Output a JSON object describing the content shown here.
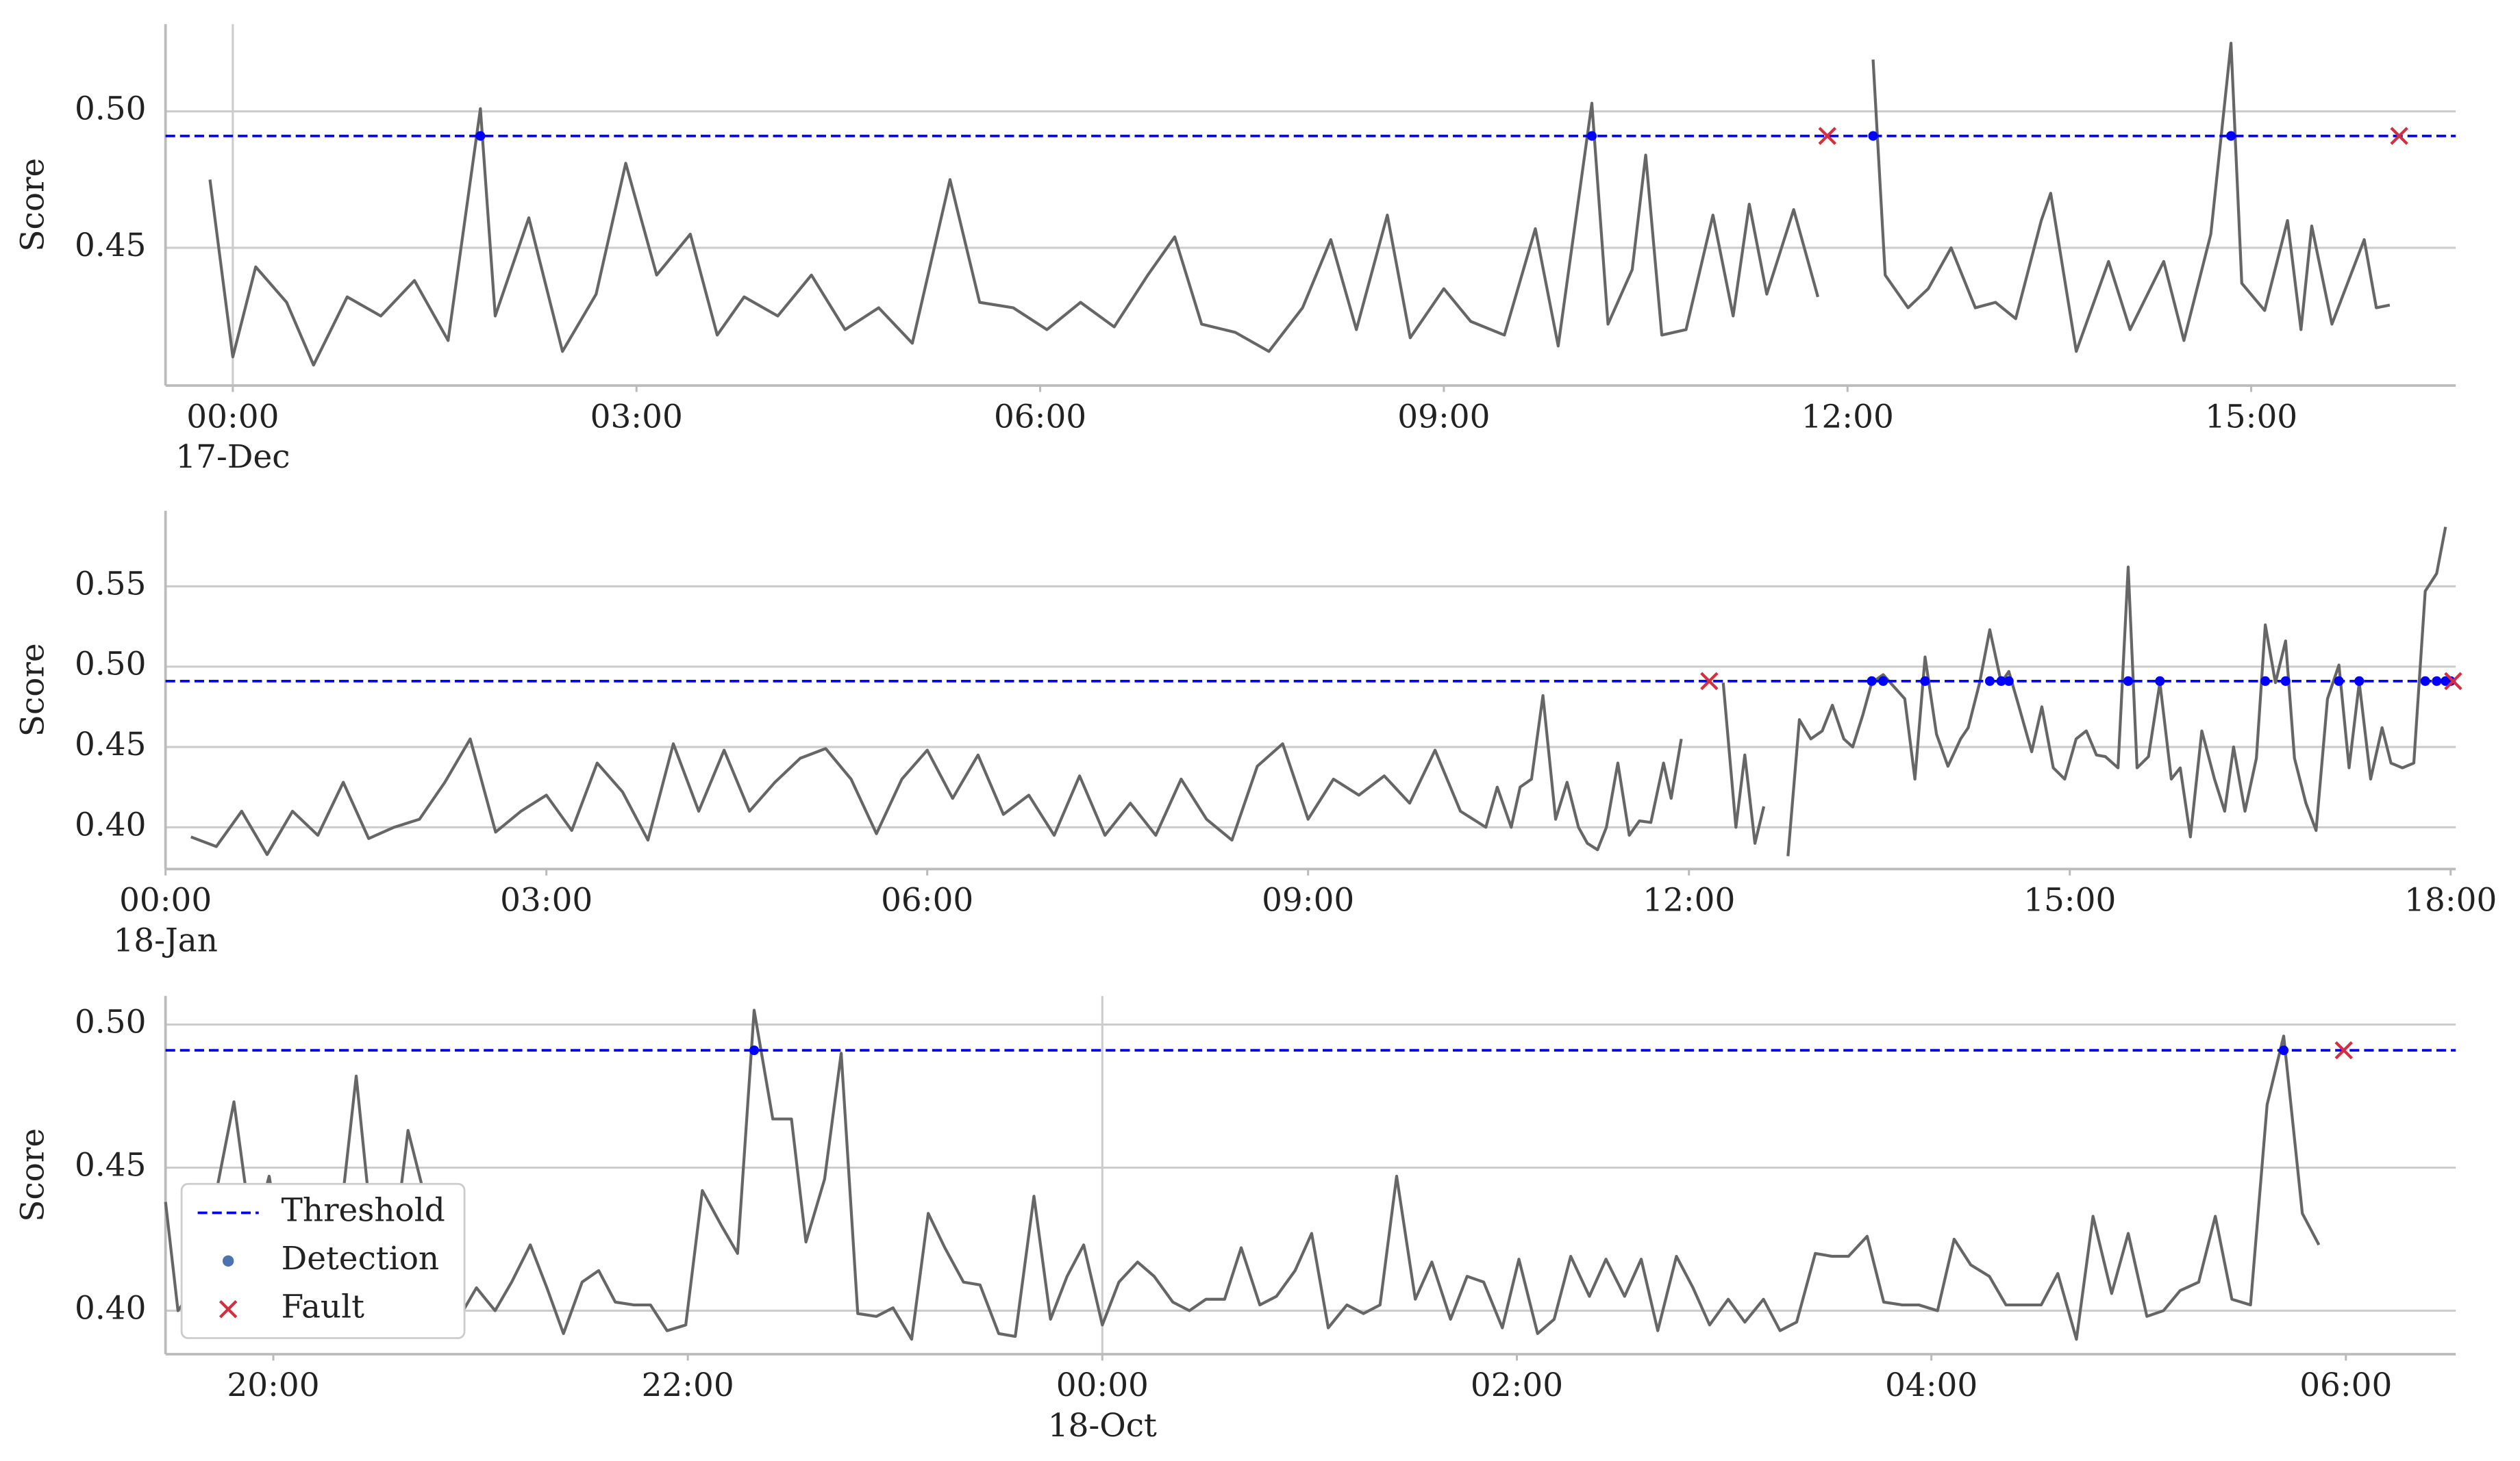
{
  "chart_data": [
    {
      "type": "line",
      "ylabel": "Score",
      "grid": true,
      "line_color": "#666666",
      "xlim": [
        -0.5,
        16.52
      ],
      "ylim": [
        0.3995,
        0.532
      ],
      "xticks": [
        {
          "value": 0,
          "label": "00:00"
        },
        {
          "value": 3,
          "label": "03:00"
        },
        {
          "value": 6,
          "label": "06:00"
        },
        {
          "value": 9,
          "label": "09:00"
        },
        {
          "value": 12,
          "label": "12:00"
        },
        {
          "value": 15,
          "label": "15:00"
        }
      ],
      "x_date_labels": [
        {
          "value": 0,
          "label": "17-Dec"
        }
      ],
      "yticks": [
        0.45,
        {
          "value": 0.5,
          "label": "0.50"
        }
      ],
      "x": [
        -0.17,
        0,
        0.17,
        0.4,
        0.6,
        0.85,
        1.1,
        1.35,
        1.6,
        1.84,
        1.95,
        2.2,
        2.45,
        2.7,
        2.92,
        3.15,
        3.4,
        3.6,
        3.8,
        4.05,
        4.3,
        4.55,
        4.8,
        5.05,
        5.33,
        5.55,
        5.8,
        6.05,
        6.3,
        6.55,
        6.8,
        7.0,
        7.2,
        7.45,
        7.7,
        7.95,
        8.16,
        8.35,
        8.58,
        8.75,
        9.0,
        9.2,
        9.45,
        9.68,
        9.85,
        10.1,
        10.22,
        10.4,
        10.5,
        10.62,
        10.8,
        11.0,
        11.15,
        11.27,
        11.4,
        11.6,
        11.78,
        12.0,
        12.19,
        12.28,
        12.45,
        12.6,
        12.77,
        12.95,
        13.1,
        13.25,
        13.44,
        13.51,
        13.7,
        13.94,
        14.1,
        14.35,
        14.5,
        14.7,
        14.85,
        14.93,
        15.1,
        15.27,
        15.37,
        15.45,
        15.6,
        15.84,
        15.93,
        16.03
      ],
      "values": [
        0.475,
        0.41,
        0.443,
        0.43,
        0.407,
        0.432,
        0.425,
        0.438,
        0.416,
        0.501,
        0.425,
        0.461,
        0.412,
        0.433,
        0.481,
        0.44,
        0.455,
        0.418,
        0.432,
        0.425,
        0.44,
        0.42,
        0.428,
        0.415,
        0.475,
        0.43,
        0.428,
        0.42,
        0.43,
        0.421,
        0.44,
        0.454,
        0.422,
        0.419,
        0.412,
        0.428,
        0.453,
        0.42,
        0.462,
        0.417,
        0.435,
        0.423,
        0.418,
        0.457,
        0.414,
        0.503,
        0.422,
        0.442,
        0.484,
        0.418,
        0.42,
        0.462,
        0.425,
        0.466,
        0.433,
        0.464,
        0.432,
        null,
        0.519,
        0.44,
        0.428,
        0.435,
        0.45,
        0.428,
        0.43,
        0.424,
        0.46,
        0.47,
        0.412,
        0.445,
        0.42,
        0.445,
        0.416,
        0.455,
        0.525,
        0.437,
        0.427,
        0.46,
        0.42,
        0.458,
        0.422,
        0.453,
        0.428,
        0.429
      ],
      "threshold": {
        "value": 0.491,
        "color": "#0000ff"
      },
      "detections": {
        "color": "#0000ff",
        "x": [
          1.84,
          10.1,
          12.19,
          14.85
        ]
      },
      "faults": {
        "color": "#d03040",
        "x": [
          11.85,
          16.1
        ]
      }
    },
    {
      "type": "line",
      "ylabel": "Score",
      "grid": true,
      "line_color": "#666666",
      "xlim": [
        0,
        18.04
      ],
      "ylim": [
        0.374,
        0.597
      ],
      "xticks": [
        {
          "value": 0,
          "label": "00:00"
        },
        {
          "value": 3,
          "label": "03:00"
        },
        {
          "value": 6,
          "label": "06:00"
        },
        {
          "value": 9,
          "label": "09:00"
        },
        {
          "value": 12,
          "label": "12:00"
        },
        {
          "value": 15,
          "label": "15:00"
        },
        {
          "value": 18,
          "label": "18:00"
        }
      ],
      "x_date_labels": [
        {
          "value": 0,
          "label": "18-Jan"
        }
      ],
      "yticks": [
        {
          "value": 0.4,
          "label": "0.40"
        },
        0.45,
        {
          "value": 0.5,
          "label": "0.50"
        },
        0.55
      ],
      "x": [
        0.2,
        0.4,
        0.6,
        0.8,
        1.0,
        1.2,
        1.4,
        1.6,
        1.8,
        2.0,
        2.2,
        2.4,
        2.6,
        2.8,
        3.0,
        3.2,
        3.4,
        3.6,
        3.8,
        4.0,
        4.2,
        4.4,
        4.6,
        4.8,
        5.0,
        5.2,
        5.4,
        5.6,
        5.8,
        6.0,
        6.2,
        6.4,
        6.6,
        6.8,
        7.0,
        7.2,
        7.4,
        7.6,
        7.8,
        8.0,
        8.2,
        8.4,
        8.6,
        8.8,
        9.0,
        9.2,
        9.4,
        9.6,
        9.8,
        10.0,
        10.2,
        10.4,
        10.49,
        10.6,
        10.67,
        10.76,
        10.85,
        10.95,
        11.04,
        11.13,
        11.2,
        11.28,
        11.35,
        11.44,
        11.53,
        11.61,
        11.7,
        11.8,
        11.86,
        11.94,
        12.1,
        12.27,
        12.37,
        12.44,
        12.52,
        12.59,
        12.7,
        12.78,
        12.87,
        12.96,
        13.05,
        13.13,
        13.22,
        13.29,
        13.37,
        13.44,
        13.53,
        13.7,
        13.78,
        13.86,
        13.95,
        14.04,
        14.14,
        14.2,
        14.29,
        14.37,
        14.46,
        14.52,
        14.6,
        14.7,
        14.78,
        14.87,
        14.96,
        15.05,
        15.13,
        15.21,
        15.28,
        15.38,
        15.46,
        15.53,
        15.62,
        15.71,
        15.8,
        15.87,
        15.95,
        16.04,
        16.14,
        16.22,
        16.29,
        16.38,
        16.47,
        16.54,
        16.62,
        16.7,
        16.77,
        16.86,
        16.94,
        17.03,
        17.12,
        17.2,
        17.28,
        17.37,
        17.46,
        17.53,
        17.62,
        17.71,
        17.8,
        17.89,
        17.96
      ],
      "values": [
        0.394,
        0.388,
        0.41,
        0.383,
        0.41,
        0.395,
        0.428,
        0.393,
        0.4,
        0.405,
        0.428,
        0.455,
        0.397,
        0.41,
        0.42,
        0.398,
        0.44,
        0.422,
        0.392,
        0.452,
        0.41,
        0.448,
        0.41,
        0.428,
        0.443,
        0.449,
        0.43,
        0.396,
        0.43,
        0.448,
        0.418,
        0.445,
        0.408,
        0.42,
        0.395,
        0.432,
        0.395,
        0.415,
        0.395,
        0.43,
        0.405,
        0.392,
        0.438,
        0.452,
        0.405,
        0.43,
        0.42,
        0.432,
        0.415,
        0.448,
        0.41,
        0.4,
        0.425,
        0.4,
        0.425,
        0.43,
        0.482,
        0.405,
        0.428,
        0.4,
        0.39,
        0.386,
        0.4,
        0.44,
        0.395,
        0.404,
        0.403,
        0.44,
        0.418,
        0.455,
        null,
        0.49,
        0.4,
        0.445,
        0.39,
        0.413,
        null,
        0.382,
        0.467,
        0.455,
        0.46,
        0.476,
        0.455,
        0.45,
        0.47,
        0.49,
        0.495,
        0.48,
        0.43,
        0.506,
        0.458,
        0.438,
        0.455,
        0.462,
        0.49,
        0.523,
        0.49,
        0.497,
        0.475,
        0.447,
        0.475,
        0.437,
        0.43,
        0.455,
        0.46,
        0.445,
        0.444,
        0.437,
        0.562,
        0.437,
        0.444,
        0.49,
        0.43,
        0.437,
        0.394,
        0.46,
        0.43,
        0.41,
        0.45,
        0.41,
        0.443,
        0.526,
        0.49,
        0.516,
        0.443,
        0.415,
        0.398,
        0.48,
        0.501,
        0.437,
        0.49,
        0.43,
        0.462,
        0.44,
        0.437,
        0.44,
        0.547,
        0.558,
        0.587
      ],
      "threshold": {
        "value": 0.491,
        "color": "#0000ff"
      },
      "detections": {
        "color": "#0000ff",
        "x": [
          13.44,
          13.53,
          13.86,
          14.37,
          14.46,
          14.52,
          15.46,
          15.71,
          16.54,
          16.7,
          17.12,
          17.28,
          17.8,
          17.89,
          17.96,
          18.0
        ]
      },
      "faults": {
        "color": "#d03040",
        "x": [
          12.16,
          18.02
        ]
      }
    },
    {
      "type": "line",
      "ylabel": "Score",
      "grid": true,
      "line_color": "#666666",
      "legend": "lower left",
      "xlim": [
        -4.52,
        6.53
      ],
      "ylim": [
        0.3848,
        0.51
      ],
      "xticks": [
        {
          "value": -4,
          "label": "20:00"
        },
        {
          "value": -2,
          "label": "22:00"
        },
        {
          "value": 0,
          "label": "00:00"
        },
        {
          "value": 2,
          "label": "02:00"
        },
        {
          "value": 4,
          "label": "04:00"
        },
        {
          "value": 6,
          "label": "06:00"
        }
      ],
      "x_date_labels": [
        {
          "value": 0,
          "label": "18-Oct"
        }
      ],
      "yticks": [
        {
          "value": 0.4,
          "label": "0.40"
        },
        0.45,
        {
          "value": 0.5,
          "label": "0.50"
        }
      ],
      "x": [
        -4.52,
        -4.46,
        -4.36,
        -4.19,
        -4.1,
        -4.02,
        -3.94,
        -3.85,
        -3.77,
        -3.68,
        -3.6,
        -3.52,
        -3.43,
        -3.35,
        -3.27,
        -3.18,
        -3.1,
        -3.02,
        -2.93,
        -2.85,
        -2.76,
        -2.68,
        -2.6,
        -2.51,
        -2.43,
        -2.35,
        -2.26,
        -2.18,
        -2.1,
        -2.01,
        -1.93,
        -1.84,
        -1.76,
        -1.68,
        -1.59,
        -1.5,
        -1.43,
        -1.34,
        -1.26,
        -1.18,
        -1.09,
        -1.01,
        -0.92,
        -0.84,
        -0.76,
        -0.67,
        -0.59,
        -0.5,
        -0.42,
        -0.33,
        -0.25,
        -0.17,
        -0.09,
        0,
        0.08,
        0.17,
        0.25,
        0.34,
        0.42,
        0.5,
        0.59,
        0.67,
        0.76,
        0.84,
        0.93,
        1.01,
        1.09,
        1.18,
        1.26,
        1.34,
        1.42,
        1.51,
        1.59,
        1.68,
        1.76,
        1.84,
        1.93,
        2.01,
        2.1,
        2.18,
        2.26,
        2.35,
        2.43,
        2.52,
        2.6,
        2.68,
        2.77,
        2.85,
        2.93,
        3.02,
        3.1,
        3.19,
        3.27,
        3.35,
        3.44,
        3.52,
        3.6,
        3.69,
        3.77,
        3.86,
        3.94,
        4.03,
        4.11,
        4.19,
        4.28,
        4.36,
        4.45,
        4.53,
        4.61,
        4.7,
        4.78,
        4.87,
        4.95,
        5.04,
        5.12,
        5.2,
        5.29,
        5.37,
        5.45,
        5.54,
        5.62,
        5.7,
        5.79,
        5.87
      ],
      "values": [
        0.438,
        0.4,
        0.41,
        0.473,
        0.425,
        0.447,
        0.412,
        0.425,
        0.413,
        0.43,
        0.482,
        0.425,
        0.415,
        0.463,
        0.44,
        0.433,
        0.398,
        0.408,
        0.4,
        0.41,
        0.423,
        0.408,
        0.392,
        0.41,
        0.414,
        0.403,
        0.402,
        0.402,
        0.393,
        0.395,
        0.442,
        0.43,
        0.42,
        0.505,
        0.467,
        0.467,
        0.424,
        0.446,
        0.49,
        0.399,
        0.398,
        0.401,
        0.39,
        0.434,
        0.422,
        0.41,
        0.409,
        0.392,
        0.391,
        0.44,
        0.397,
        0.412,
        0.423,
        0.395,
        0.41,
        0.417,
        0.412,
        0.403,
        0.4,
        0.404,
        0.404,
        0.422,
        0.402,
        0.405,
        0.414,
        0.427,
        0.394,
        0.402,
        0.399,
        0.402,
        0.447,
        0.404,
        0.417,
        0.397,
        0.412,
        0.41,
        0.394,
        0.418,
        0.392,
        0.397,
        0.419,
        0.405,
        0.418,
        0.405,
        0.418,
        0.393,
        0.419,
        0.408,
        0.395,
        0.404,
        0.396,
        0.404,
        0.393,
        0.396,
        0.42,
        0.419,
        0.419,
        0.426,
        0.403,
        0.402,
        0.402,
        0.4,
        0.425,
        0.416,
        0.412,
        0.402,
        0.402,
        0.402,
        0.413,
        0.39,
        0.433,
        0.406,
        0.427,
        0.398,
        0.4,
        0.407,
        0.41,
        0.433,
        0.404,
        0.402,
        0.472,
        0.496,
        0.434,
        0.423
      ],
      "threshold": {
        "name": "Threshold",
        "value": 0.491,
        "color": "#0000ff"
      },
      "detections": {
        "name": "Detection",
        "color": "#0000ff",
        "x": [
          -1.68,
          5.7
        ]
      },
      "faults": {
        "name": "Fault",
        "color": "#d03040",
        "x": [
          5.99
        ]
      }
    }
  ]
}
